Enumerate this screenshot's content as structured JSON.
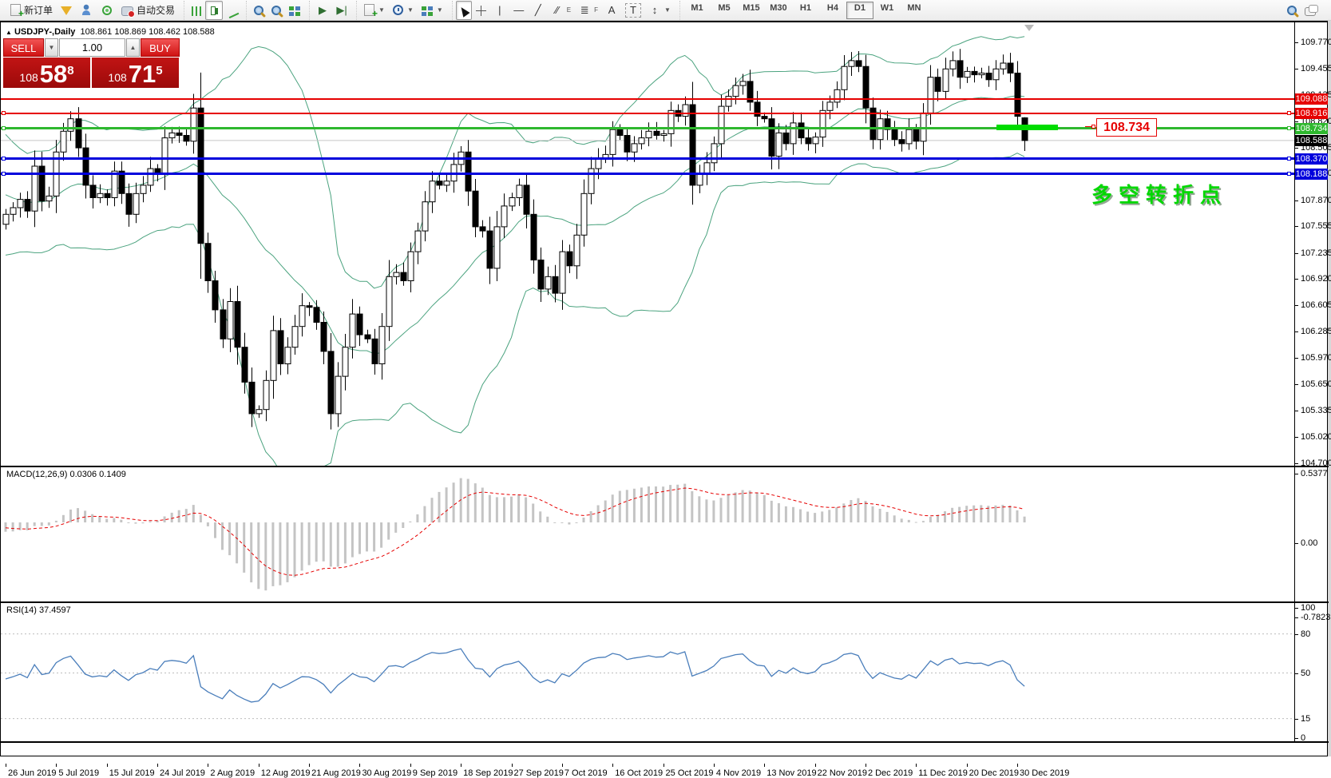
{
  "window": {
    "title_symbol": "USDJPY-,Daily",
    "title_ohlc": "108.861 108.869 108.462 108.588"
  },
  "toolbar": {
    "new_order_label": "新订单",
    "autotrade_label": "自动交易",
    "timeframes": [
      "M1",
      "M5",
      "M15",
      "M30",
      "H1",
      "H4",
      "D1",
      "W1",
      "MN"
    ],
    "active_timeframe": "D1",
    "channel_letter": "E",
    "fibo_letter": "F",
    "text_letter": "A",
    "label_letter": "T"
  },
  "trade_panel": {
    "sell_label": "SELL",
    "buy_label": "BUY",
    "volume": "1.00",
    "sell_price": {
      "prefix": "108",
      "big": "58",
      "sup": "8"
    },
    "buy_price": {
      "prefix": "108",
      "big": "71",
      "sup": "5"
    }
  },
  "price_axis": {
    "ticks": [
      "109.770",
      "109.455",
      "109.135",
      "108.820",
      "108.505",
      "108.190",
      "107.870",
      "107.555",
      "107.235",
      "106.920",
      "106.605",
      "106.285",
      "105.970",
      "105.650",
      "105.335",
      "105.020",
      "104.700"
    ],
    "current": {
      "label": "108.588",
      "price": 108.588,
      "bg": "#000000"
    }
  },
  "hlines": [
    {
      "price": 109.088,
      "label": "109.088",
      "color": "#e60000",
      "width": 2,
      "handles": false
    },
    {
      "price": 108.916,
      "label": "108.916",
      "color": "#e60000",
      "width": 2,
      "handles": true
    },
    {
      "price": 108.734,
      "label": "108.734",
      "color": "#2eb82e",
      "width": 3,
      "handles": true
    },
    {
      "price": 108.37,
      "label": "108.370",
      "color": "#0000dc",
      "width": 3,
      "handles": true
    },
    {
      "price": 108.188,
      "label": "108.188",
      "color": "#0000dc",
      "width": 3,
      "handles": true
    }
  ],
  "annotations": {
    "price_tag": "108.734",
    "note_text": "多空转折点",
    "green_segment_color": "#00dc00"
  },
  "macd": {
    "label": "MACD(12,26,9) 0.0306 0.1409",
    "axis_labels": [
      "0.5377",
      "0.00",
      "-0.7823"
    ],
    "hist_color": "#c4c4c4",
    "signal_color": "#e60000"
  },
  "rsi": {
    "label": "RSI(14) 37.4597",
    "axis_labels": [
      "100",
      "80",
      "50",
      "15",
      "0"
    ],
    "levels": [
      80,
      50,
      15
    ],
    "line_color": "#4a7ebb"
  },
  "date_axis": {
    "labels": [
      "26 Jun 2019",
      "5 Jul 2019",
      "15 Jul 2019",
      "24 Jul 2019",
      "2 Aug 2019",
      "12 Aug 2019",
      "21 Aug 2019",
      "30 Aug 2019",
      "9 Sep 2019",
      "18 Sep 2019",
      "27 Sep 2019",
      "7 Oct 2019",
      "16 Oct 2019",
      "25 Oct 2019",
      "4 Nov 2019",
      "13 Nov 2019",
      "22 Nov 2019",
      "2 Dec 2019",
      "11 Dec 2019",
      "20 Dec 2019",
      "30 Dec 2019"
    ]
  },
  "chart_data": {
    "type": "candlestick",
    "symbol": "USDJPY",
    "timeframe": "Daily",
    "ylim": [
      104.7,
      109.99
    ],
    "dates": [
      "26 Jun 2019",
      "5 Jul 2019",
      "15 Jul 2019",
      "24 Jul 2019",
      "2 Aug 2019",
      "12 Aug 2019",
      "21 Aug 2019",
      "30 Aug 2019",
      "9 Sep 2019",
      "18 Sep 2019",
      "27 Sep 2019",
      "7 Oct 2019",
      "16 Oct 2019",
      "25 Oct 2019",
      "4 Nov 2019",
      "13 Nov 2019",
      "22 Nov 2019",
      "2 Dec 2019",
      "11 Dec 2019",
      "20 Dec 2019",
      "30 Dec 2019"
    ],
    "bb_seed": [
      108.07,
      108.55,
      108.45,
      108.3,
      108.1,
      107.85,
      107.6,
      107.32,
      107.45,
      107.8,
      107.95,
      108.1,
      108.35,
      108.5,
      108.25,
      107.95,
      107.7,
      107.55,
      107.65,
      107.58
    ],
    "closes": [
      107.7,
      107.78,
      107.88,
      107.74,
      108.28,
      107.86,
      107.92,
      108.45,
      108.7,
      108.85,
      108.5,
      108.05,
      107.9,
      107.95,
      107.9,
      108.22,
      107.95,
      107.7,
      107.95,
      108.05,
      108.25,
      108.18,
      108.62,
      108.68,
      108.65,
      108.58,
      108.98,
      107.35,
      106.9,
      106.55,
      106.2,
      106.65,
      106.1,
      105.68,
      105.3,
      105.35,
      105.7,
      106.3,
      105.9,
      106.1,
      106.35,
      106.6,
      106.58,
      106.4,
      106.05,
      105.3,
      105.75,
      106.1,
      106.5,
      106.25,
      106.2,
      105.9,
      106.35,
      106.95,
      107.0,
      106.9,
      107.25,
      107.5,
      107.85,
      108.1,
      108.05,
      108.1,
      108.3,
      108.45,
      107.98,
      107.55,
      107.5,
      107.05,
      107.55,
      107.8,
      107.9,
      108.05,
      107.7,
      107.15,
      106.8,
      106.95,
      106.75,
      107.25,
      107.08,
      107.45,
      107.95,
      108.25,
      108.38,
      108.42,
      108.72,
      108.65,
      108.45,
      108.55,
      108.62,
      108.7,
      108.65,
      108.67,
      108.95,
      108.88,
      109.02,
      108.05,
      108.18,
      108.32,
      108.55,
      109.0,
      109.12,
      109.25,
      109.3,
      109.05,
      108.88,
      108.85,
      108.4,
      108.68,
      108.55,
      108.8,
      108.62,
      108.55,
      108.63,
      108.95,
      109.05,
      109.2,
      109.48,
      109.55,
      109.48,
      108.98,
      108.6,
      108.85,
      108.72,
      108.6,
      108.55,
      108.72,
      108.58,
      108.92,
      109.35,
      109.18,
      109.45,
      109.55,
      109.35,
      109.42,
      109.38,
      109.4,
      109.32,
      109.45,
      109.52,
      109.4,
      108.88,
      108.588
    ],
    "last_candle": {
      "open": 108.861,
      "high": 108.869,
      "low": 108.462,
      "close": 108.588
    },
    "key_levels": [
      109.088,
      108.916,
      108.734,
      108.37,
      108.188
    ],
    "indicators": [
      {
        "name": "Bollinger Bands",
        "params": "(20,2)",
        "color": "#4ba37f"
      },
      {
        "name": "MACD",
        "params": "(12,26,9)",
        "values": [
          0.0306,
          0.1409
        ],
        "range": [
          -0.7823,
          0.5377
        ]
      },
      {
        "name": "RSI",
        "params": "(14)",
        "value": 37.4597,
        "range": [
          0,
          100
        ]
      }
    ]
  }
}
